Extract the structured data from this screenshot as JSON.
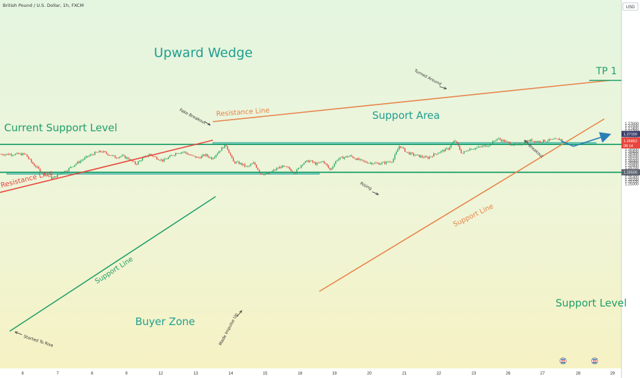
{
  "header": {
    "symbol_title": "British Pound / U.S. Dollar, 1h, FXCM",
    "currency_button": "USD"
  },
  "colors": {
    "background_top": "#e4f5e0",
    "background_bottom": "#f6f2c4",
    "candle_up": "#26a65b",
    "candle_down": "#e8453c",
    "support_green": "#1f9e6a",
    "zone_fill": "#4fc3b8",
    "resistance_red": "#e8453c",
    "wedge_orange": "#e8834a",
    "projection_blue": "#2a7fb5",
    "title_teal": "#1f9e8f",
    "price_label_bg": "#5d6470",
    "tp_label_bg": "#3d3f6b",
    "last_price_bg": "#e8453c"
  },
  "chart_data": {
    "type": "candlestick",
    "symbol": "GBPUSD",
    "timeframe": "1h",
    "x_ticks": [
      "6",
      "7",
      "8",
      "9",
      "12",
      "13",
      "14",
      "15",
      "16",
      "19",
      "20",
      "21",
      "22",
      "23",
      "26",
      "27",
      "28",
      "29"
    ],
    "y_range": [
      1.2496,
      1.2768
    ],
    "y_ticks": [
      "1.27600",
      "1.27500",
      "1.27400",
      "1.27300",
      "1.27200",
      "1.27100",
      "1.27000",
      "1.26900",
      "1.26800",
      "1.26600",
      "1.26500",
      "1.26400",
      "1.26300",
      "1.26200",
      "1.26100",
      "1.26000",
      "1.25900",
      "1.25800",
      "1.25700",
      "1.25600",
      "1.25400",
      "1.25300",
      "1.25200",
      "1.25100",
      "1.25000"
    ],
    "levels": {
      "current_support": "1.26700",
      "support": "1.25500",
      "tp1": "1.27150"
    },
    "last_price": "1.26852",
    "countdown": "08:14",
    "close_path": [
      [
        "6",
        1.2628
      ],
      [
        "6",
        1.259
      ],
      [
        "6",
        1.2562
      ],
      [
        "6",
        1.2538
      ],
      [
        "6",
        1.2524
      ],
      [
        "7",
        1.2545
      ],
      [
        "7",
        1.256
      ],
      [
        "7",
        1.2582
      ],
      [
        "7",
        1.26
      ],
      [
        "7",
        1.2618
      ],
      [
        "8",
        1.2632
      ],
      [
        "8",
        1.264
      ],
      [
        "8",
        1.2628
      ],
      [
        "8",
        1.2615
      ],
      [
        "8",
        1.262
      ],
      [
        "9",
        1.2608
      ],
      [
        "9",
        1.2585
      ],
      [
        "9",
        1.261
      ],
      [
        "9",
        1.2628
      ],
      [
        "9",
        1.2612
      ],
      [
        "12",
        1.26
      ],
      [
        "12",
        1.2618
      ],
      [
        "12",
        1.2635
      ],
      [
        "12",
        1.2638
      ],
      [
        "12",
        1.2622
      ],
      [
        "13",
        1.2612
      ],
      [
        "13",
        1.2625
      ],
      [
        "13",
        1.261
      ],
      [
        "13",
        1.264
      ],
      [
        "13",
        1.267
      ],
      [
        "14",
        1.2595
      ],
      [
        "14",
        1.2588
      ],
      [
        "14",
        1.2572
      ],
      [
        "14",
        1.259
      ],
      [
        "14",
        1.2545
      ],
      [
        "15",
        1.2542
      ],
      [
        "15",
        1.256
      ],
      [
        "15",
        1.2575
      ],
      [
        "15",
        1.2568
      ],
      [
        "15",
        1.2548
      ],
      [
        "16",
        1.259
      ],
      [
        "16",
        1.26
      ],
      [
        "16",
        1.2585
      ],
      [
        "16",
        1.2598
      ],
      [
        "16",
        1.256
      ],
      [
        "19",
        1.2605
      ],
      [
        "19",
        1.2615
      ],
      [
        "19",
        1.262
      ],
      [
        "19",
        1.2605
      ],
      [
        "19",
        1.2595
      ],
      [
        "20",
        1.259
      ],
      [
        "20",
        1.2588
      ],
      [
        "20",
        1.2592
      ],
      [
        "20",
        1.26
      ],
      [
        "20",
        1.2665
      ],
      [
        "21",
        1.2635
      ],
      [
        "21",
        1.2625
      ],
      [
        "21",
        1.2618
      ],
      [
        "21",
        1.2612
      ],
      [
        "21",
        1.2628
      ],
      [
        "22",
        1.264
      ],
      [
        "22",
        1.2652
      ],
      [
        "22",
        1.2688
      ],
      [
        "22",
        1.263
      ],
      [
        "22",
        1.265
      ],
      [
        "23",
        1.2655
      ],
      [
        "23",
        1.2662
      ],
      [
        "23",
        1.267
      ],
      [
        "23",
        1.2695
      ],
      [
        "23",
        1.2685
      ],
      [
        "26",
        1.2672
      ],
      [
        "26",
        1.2665
      ],
      [
        "26",
        1.268
      ],
      [
        "26",
        1.2688
      ],
      [
        "26",
        1.2682
      ],
      [
        "27",
        1.2686
      ],
      [
        "27",
        1.269
      ],
      [
        "27",
        1.2692
      ],
      [
        "27",
        1.2685
      ]
    ],
    "projection": [
      "1.26852",
      "1.26620",
      "1.27150"
    ]
  },
  "annotations": {
    "pattern_title": "Upward Wedge",
    "current_support_level": "Current Support Level",
    "support_area": "Support Area",
    "resistance_line_left": "Resistance Line",
    "resistance_line_top": "Resistance Line",
    "fake_breakout": "Fake Breakout",
    "turned_around": "Turned Around",
    "support_line_left": "Support Line",
    "support_line_right": "Support Line",
    "rising": "Rising",
    "breakout": "Breakout",
    "buyer_zone": "Buyer Zone",
    "support_level": "Support Level",
    "started_to_rise": "Started To Rise",
    "made_impulse_up": "Made Impulse Up",
    "tp1": "TP 1"
  }
}
